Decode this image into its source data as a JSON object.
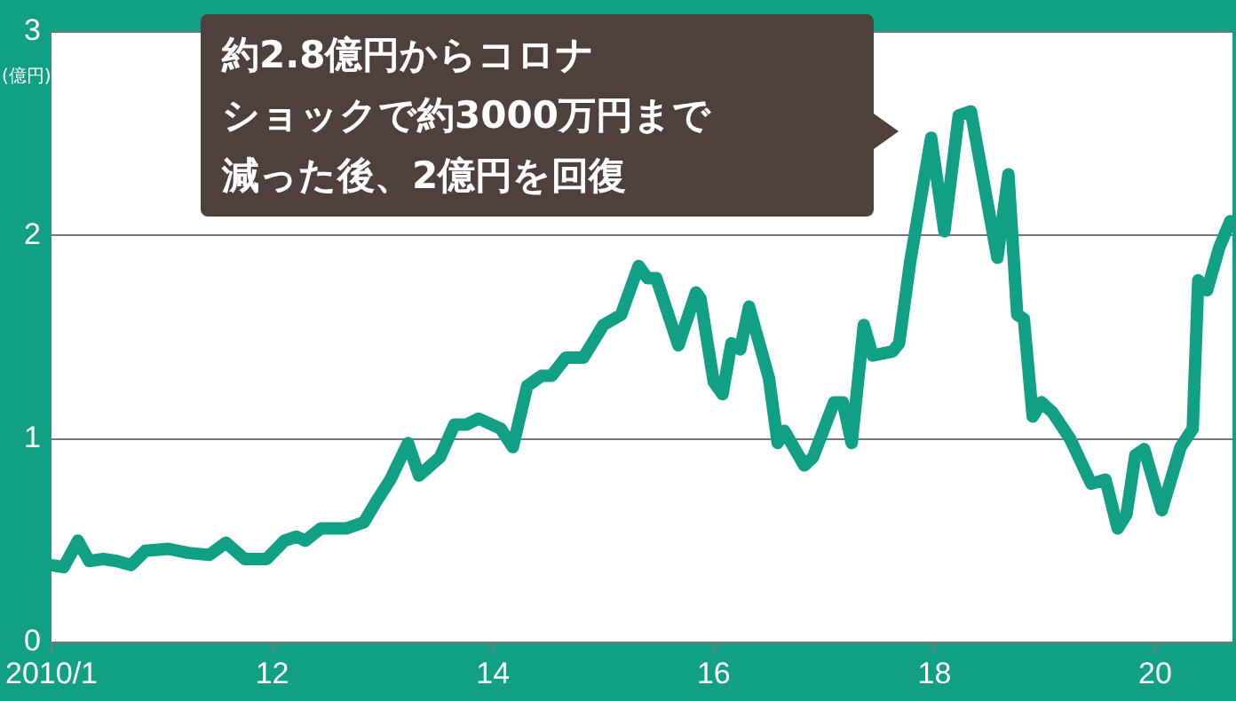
{
  "chart_data": {
    "type": "line",
    "ylabel": "(億円)",
    "annotations": [
      "約2.8億円からコロナ",
      "ショックで約3000万円まで",
      "減った後、2億円を回復"
    ],
    "x": [
      2010.0,
      2010.11,
      2010.24,
      2010.34,
      2010.47,
      2010.59,
      2010.72,
      2010.85,
      2011.06,
      2011.24,
      2011.43,
      2011.58,
      2011.75,
      2011.95,
      2012.11,
      2012.22,
      2012.3,
      2012.44,
      2012.67,
      2012.83,
      2012.94,
      2013.07,
      2013.23,
      2013.33,
      2013.52,
      2013.65,
      2013.76,
      2013.87,
      2014.07,
      2014.18,
      2014.31,
      2014.44,
      2014.53,
      2014.66,
      2014.82,
      2015.0,
      2015.16,
      2015.32,
      2015.4,
      2015.48,
      2015.68,
      2015.84,
      2015.88,
      2016.0,
      2016.08,
      2016.16,
      2016.24,
      2016.32,
      2016.5,
      2016.58,
      2016.64,
      2016.82,
      2016.9,
      2017.09,
      2017.17,
      2017.25,
      2017.36,
      2017.44,
      2017.62,
      2017.68,
      2017.78,
      2017.97,
      2018.09,
      2018.22,
      2018.33,
      2018.57,
      2018.67,
      2018.75,
      2018.81,
      2018.89,
      2018.97,
      2019.07,
      2019.23,
      2019.42,
      2019.55,
      2019.66,
      2019.74,
      2019.82,
      2019.9,
      2020.06,
      2020.23,
      2020.34,
      2020.39,
      2020.47,
      2020.58,
      2020.68
    ],
    "series": [
      {
        "color": "#12a084",
        "values": [
          0.38,
          0.37,
          0.5,
          0.4,
          0.41,
          0.4,
          0.38,
          0.45,
          0.46,
          0.44,
          0.43,
          0.49,
          0.41,
          0.41,
          0.5,
          0.52,
          0.5,
          0.56,
          0.56,
          0.59,
          0.69,
          0.8,
          0.98,
          0.82,
          0.91,
          1.07,
          1.07,
          1.1,
          1.05,
          0.96,
          1.26,
          1.31,
          1.31,
          1.4,
          1.4,
          1.56,
          1.61,
          1.85,
          1.79,
          1.79,
          1.46,
          1.72,
          1.69,
          1.28,
          1.22,
          1.47,
          1.44,
          1.65,
          1.3,
          0.98,
          1.04,
          0.87,
          0.91,
          1.18,
          1.18,
          0.98,
          1.56,
          1.41,
          1.43,
          1.47,
          1.87,
          2.48,
          2.02,
          2.59,
          2.61,
          1.89,
          2.3,
          1.61,
          1.59,
          1.11,
          1.18,
          1.13,
          1.0,
          0.78,
          0.8,
          0.56,
          0.63,
          0.92,
          0.95,
          0.65,
          0.96,
          1.05,
          1.78,
          1.73,
          1.94,
          2.07
        ]
      }
    ],
    "xlim": [
      2010,
      2020.7
    ],
    "xticks": [
      {
        "value": 2010,
        "label": "2010/1"
      },
      {
        "value": 2012,
        "label": "12"
      },
      {
        "value": 2014,
        "label": "14"
      },
      {
        "value": 2016,
        "label": "16"
      },
      {
        "value": 2018,
        "label": "18"
      },
      {
        "value": 2020,
        "label": "20"
      }
    ],
    "ylim": [
      0,
      3
    ],
    "yticks": [
      0,
      1,
      2,
      3
    ],
    "grid": "y",
    "legend": false,
    "marker": "none",
    "line_style": "solid"
  }
}
